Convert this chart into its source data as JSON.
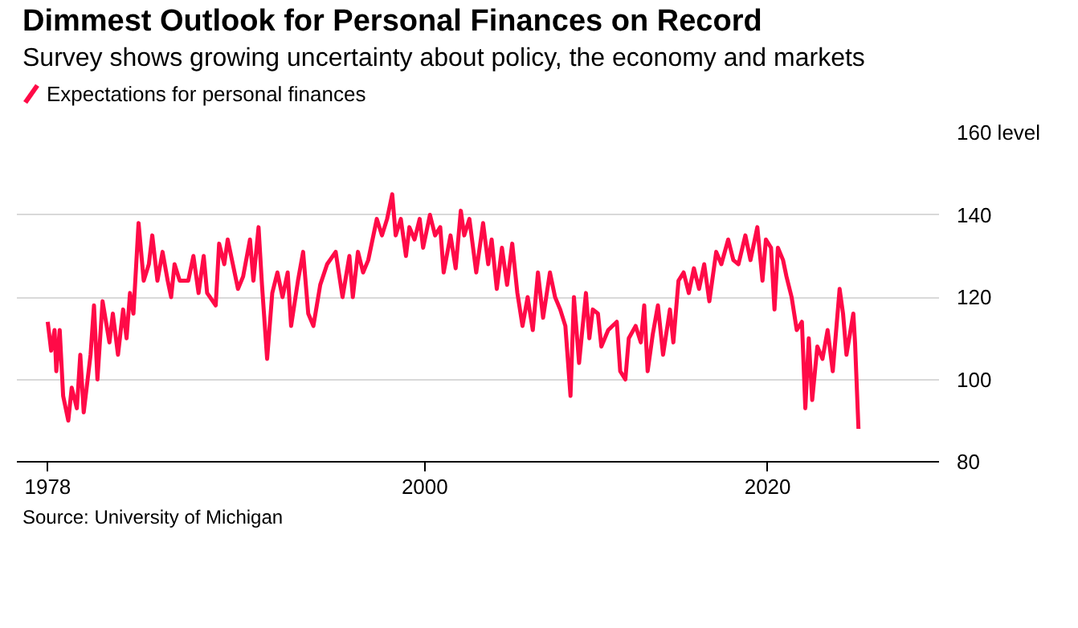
{
  "chart_data": {
    "type": "line",
    "title": "Dimmest Outlook for Personal Finances on Record",
    "subtitle": "Survey shows growing uncertainty about policy, the economy and markets",
    "annotations": [
      "Source: University of Michigan"
    ],
    "xlim": [
      1976.2,
      2030
    ],
    "xticks": [
      1978,
      2000,
      2020
    ],
    "ylim": [
      80,
      160
    ],
    "yticks": [
      80,
      100,
      120,
      140,
      {
        "value": 160,
        "label": "160 level"
      }
    ],
    "grid": "y",
    "legend": "top left",
    "line_style": "solid",
    "series": [
      {
        "name": "Expectations for personal finances",
        "color": "#ff0a47",
        "x": [
          1978.0,
          1978.2,
          1978.4,
          1978.5,
          1978.7,
          1978.9,
          1979.2,
          1979.4,
          1979.7,
          1979.9,
          1980.1,
          1980.5,
          1980.7,
          1980.9,
          1981.2,
          1981.6,
          1981.8,
          1982.1,
          1982.4,
          1982.6,
          1982.8,
          1983.0,
          1983.3,
          1983.6,
          1983.9,
          1984.1,
          1984.4,
          1984.7,
          1985.0,
          1985.2,
          1985.4,
          1985.7,
          1986.2,
          1986.5,
          1986.8,
          1987.1,
          1987.3,
          1987.8,
          1988.0,
          1988.3,
          1988.5,
          1988.8,
          1989.1,
          1989.4,
          1989.8,
          1990.0,
          1990.3,
          1990.5,
          1990.8,
          1991.1,
          1991.4,
          1991.7,
          1992.0,
          1992.2,
          1992.6,
          1992.9,
          1993.2,
          1993.5,
          1993.9,
          1994.3,
          1994.8,
          1995.2,
          1995.6,
          1995.8,
          1996.1,
          1996.4,
          1996.7,
          1996.9,
          1997.2,
          1997.5,
          1997.8,
          1998.1,
          1998.3,
          1998.6,
          1998.9,
          1999.1,
          1999.4,
          1999.7,
          1999.9,
          2000.3,
          2000.6,
          2000.9,
          2001.1,
          2001.5,
          2001.8,
          2002.1,
          2002.3,
          2002.6,
          2003.0,
          2003.4,
          2003.7,
          2003.9,
          2004.2,
          2004.5,
          2004.8,
          2005.1,
          2005.4,
          2005.7,
          2006.0,
          2006.3,
          2006.6,
          2006.9,
          2007.3,
          2007.6,
          2007.9,
          2008.2,
          2008.5,
          2008.7,
          2009.0,
          2009.4,
          2009.6,
          2009.8,
          2010.1,
          2010.3,
          2010.7,
          2011.2,
          2011.4,
          2011.7,
          2011.9,
          2012.3,
          2012.6,
          2012.8,
          2013.0,
          2013.3,
          2013.6,
          2013.9,
          2014.3,
          2014.5,
          2014.8,
          2015.1,
          2015.4,
          2015.7,
          2016.0,
          2016.3,
          2016.6,
          2017.0,
          2017.3,
          2017.7,
          2018.0,
          2018.3,
          2018.7,
          2019.0,
          2019.4,
          2019.7,
          2019.9,
          2020.2,
          2020.4,
          2020.6,
          2020.9,
          2021.1,
          2021.4,
          2021.7,
          2022.0,
          2022.2,
          2022.4,
          2022.6,
          2022.9,
          2023.2,
          2023.5,
          2023.8,
          2024.2,
          2024.4,
          2024.6,
          2025.0,
          2025.1,
          2025.3
        ],
        "values": [
          114,
          107,
          112,
          102,
          112,
          96,
          90,
          98,
          93,
          106,
          92,
          106,
          118,
          100,
          119,
          109,
          116,
          106,
          117,
          110,
          121,
          116,
          138,
          124,
          128,
          135,
          124,
          131,
          124,
          120,
          128,
          124,
          124,
          130,
          121,
          130,
          121,
          118,
          133,
          128,
          134,
          128,
          122,
          125,
          134,
          124,
          137,
          123,
          105,
          121,
          126,
          120,
          126,
          113,
          124,
          131,
          116,
          113,
          123,
          128,
          131,
          120,
          130,
          120,
          131,
          126,
          129,
          133,
          139,
          135,
          139,
          145,
          135,
          139,
          130,
          137,
          134,
          139,
          132,
          140,
          135,
          137,
          126,
          135,
          127,
          141,
          135,
          139,
          126,
          138,
          128,
          134,
          122,
          132,
          123,
          133,
          121,
          113,
          120,
          112,
          126,
          115,
          126,
          120,
          117,
          113,
          96,
          120,
          104,
          121,
          110,
          117,
          116,
          108,
          112,
          114,
          102,
          100,
          110,
          113,
          109,
          118,
          102,
          111,
          118,
          106,
          117,
          109,
          124,
          126,
          121,
          127,
          122,
          128,
          119,
          131,
          128,
          134,
          129,
          128,
          135,
          129,
          137,
          124,
          134,
          132,
          117,
          132,
          129,
          125,
          120,
          112,
          114,
          93,
          110,
          95,
          108,
          105,
          112,
          102,
          122,
          116,
          106,
          116,
          109,
          88
        ]
      }
    ]
  }
}
